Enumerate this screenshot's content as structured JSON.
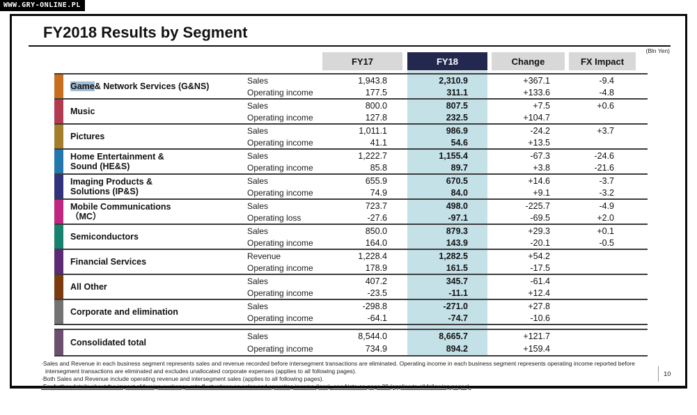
{
  "watermark": {
    "label": "WWW.GRY-ONLINE.PL"
  },
  "slide": {
    "title": "FY2018 Results by Segment",
    "unit_label": "(Bln Yen)",
    "page_number": "10"
  },
  "colors": {
    "fy18_header_bg": "#23284f",
    "header_bg": "#d8d8d8",
    "fy18_band": "#c5e1e8",
    "selection_highlight": "#a3bdd6",
    "separator_line": "#3c3c3c"
  },
  "table": {
    "columns": [
      {
        "label": "FY17"
      },
      {
        "label": "FY18"
      },
      {
        "label": "Change"
      },
      {
        "label": "FX Impact"
      }
    ],
    "segments": [
      {
        "name": "Game & Network Services (G&NS)",
        "highlight": "Game",
        "color": "#c76f1e",
        "rows": [
          {
            "label": "Sales",
            "fy17": "1,943.8",
            "fy18": "2,310.9",
            "change": "+367.1",
            "fx": "-9.4"
          },
          {
            "label": "Operating income",
            "fy17": "177.5",
            "fy18": "311.1",
            "change": "+133.6",
            "fx": "-4.8"
          }
        ]
      },
      {
        "name": "Music",
        "color": "#b13b51",
        "rows": [
          {
            "label": "Sales",
            "fy17": "800.0",
            "fy18": "807.5",
            "change": "+7.5",
            "fx": "+0.6"
          },
          {
            "label": "Operating income",
            "fy17": "127.8",
            "fy18": "232.5",
            "change": "+104.7",
            "fx": ""
          }
        ]
      },
      {
        "name": "Pictures",
        "color": "#a57e2b",
        "rows": [
          {
            "label": "Sales",
            "fy17": "1,011.1",
            "fy18": "986.9",
            "change": "-24.2",
            "fx": "+3.7"
          },
          {
            "label": "Operating income",
            "fy17": "41.1",
            "fy18": "54.6",
            "change": "+13.5",
            "fx": ""
          }
        ]
      },
      {
        "name": "Home Entertainment &\nSound (HE&S)",
        "color": "#2477ad",
        "rows": [
          {
            "label": "Sales",
            "fy17": "1,222.7",
            "fy18": "1,155.4",
            "change": "-67.3",
            "fx": "-24.6"
          },
          {
            "label": "Operating income",
            "fy17": "85.8",
            "fy18": "89.7",
            "change": "+3.8",
            "fx": "-21.6"
          }
        ]
      },
      {
        "name": "Imaging Products &\nSolutions (IP&S)",
        "color": "#32317b",
        "rows": [
          {
            "label": "Sales",
            "fy17": "655.9",
            "fy18": "670.5",
            "change": "+14.6",
            "fx": "-3.7"
          },
          {
            "label": "Operating income",
            "fy17": "74.9",
            "fy18": "84.0",
            "change": "+9.1",
            "fx": "-3.2"
          }
        ]
      },
      {
        "name": "Mobile Communications\n（MC）",
        "color": "#bf2680",
        "rows": [
          {
            "label": "Sales",
            "fy17": "723.7",
            "fy18": "498.0",
            "change": "-225.7",
            "fx": "-4.9"
          },
          {
            "label": "Operating loss",
            "fy17": "-27.6",
            "fy18": "-97.1",
            "change": "-69.5",
            "fx": "+2.0"
          }
        ]
      },
      {
        "name": "Semiconductors",
        "color": "#17806e",
        "rows": [
          {
            "label": "Sales",
            "fy17": "850.0",
            "fy18": "879.3",
            "change": "+29.3",
            "fx": "+0.1"
          },
          {
            "label": "Operating income",
            "fy17": "164.0",
            "fy18": "143.9",
            "change": "-20.1",
            "fx": "-0.5"
          }
        ]
      },
      {
        "name": "Financial Services",
        "color": "#5d2a75",
        "rows": [
          {
            "label": "Revenue",
            "fy17": "1,228.4",
            "fy18": "1,282.5",
            "change": "+54.2",
            "fx": ""
          },
          {
            "label": "Operating income",
            "fy17": "178.9",
            "fy18": "161.5",
            "change": "-17.5",
            "fx": ""
          }
        ]
      },
      {
        "name": "All Other",
        "color": "#7b3a10",
        "rows": [
          {
            "label": "Sales",
            "fy17": "407.2",
            "fy18": "345.7",
            "change": "-61.4",
            "fx": ""
          },
          {
            "label": "Operating income",
            "fy17": "-23.5",
            "fy18": "-11.1",
            "change": "+12.4",
            "fx": ""
          }
        ]
      },
      {
        "name": "Corporate and elimination",
        "color": "#737373",
        "rows": [
          {
            "label": "Sales",
            "fy17": "-298.8",
            "fy18": "-271.0",
            "change": "+27.8",
            "fx": ""
          },
          {
            "label": "Operating income",
            "fy17": "-64.1",
            "fy18": "-74.7",
            "change": "-10.6",
            "fx": ""
          }
        ]
      }
    ],
    "total_segment": {
      "name": "Consolidated total",
      "color": "#6c4e6e",
      "rows": [
        {
          "label": "Sales",
          "fy17": "8,544.0",
          "fy18": "8,665.7",
          "change": "+121.7",
          "fx": ""
        },
        {
          "label": "Operating income",
          "fy17": "734.9",
          "fy18": "894.2",
          "change": "+159.4",
          "fx": ""
        }
      ]
    }
  },
  "footnotes": [
    "·Sales and Revenue in each business segment represents sales and revenue recorded before intersegment transactions are eliminated.  Operating income in each business segment represents operating income reported before intersegment transactions are eliminated and excludes unallocated corporate expenses (applies to all following pages).",
    "·Both Sales and Revenue include operating revenue and intersegment sales (applies to all following pages).",
    "·For further details about the impact of foreign exchange rate fluctuations on sales and operating income (loss), see Note on page 29 (applies to all following pages)."
  ]
}
